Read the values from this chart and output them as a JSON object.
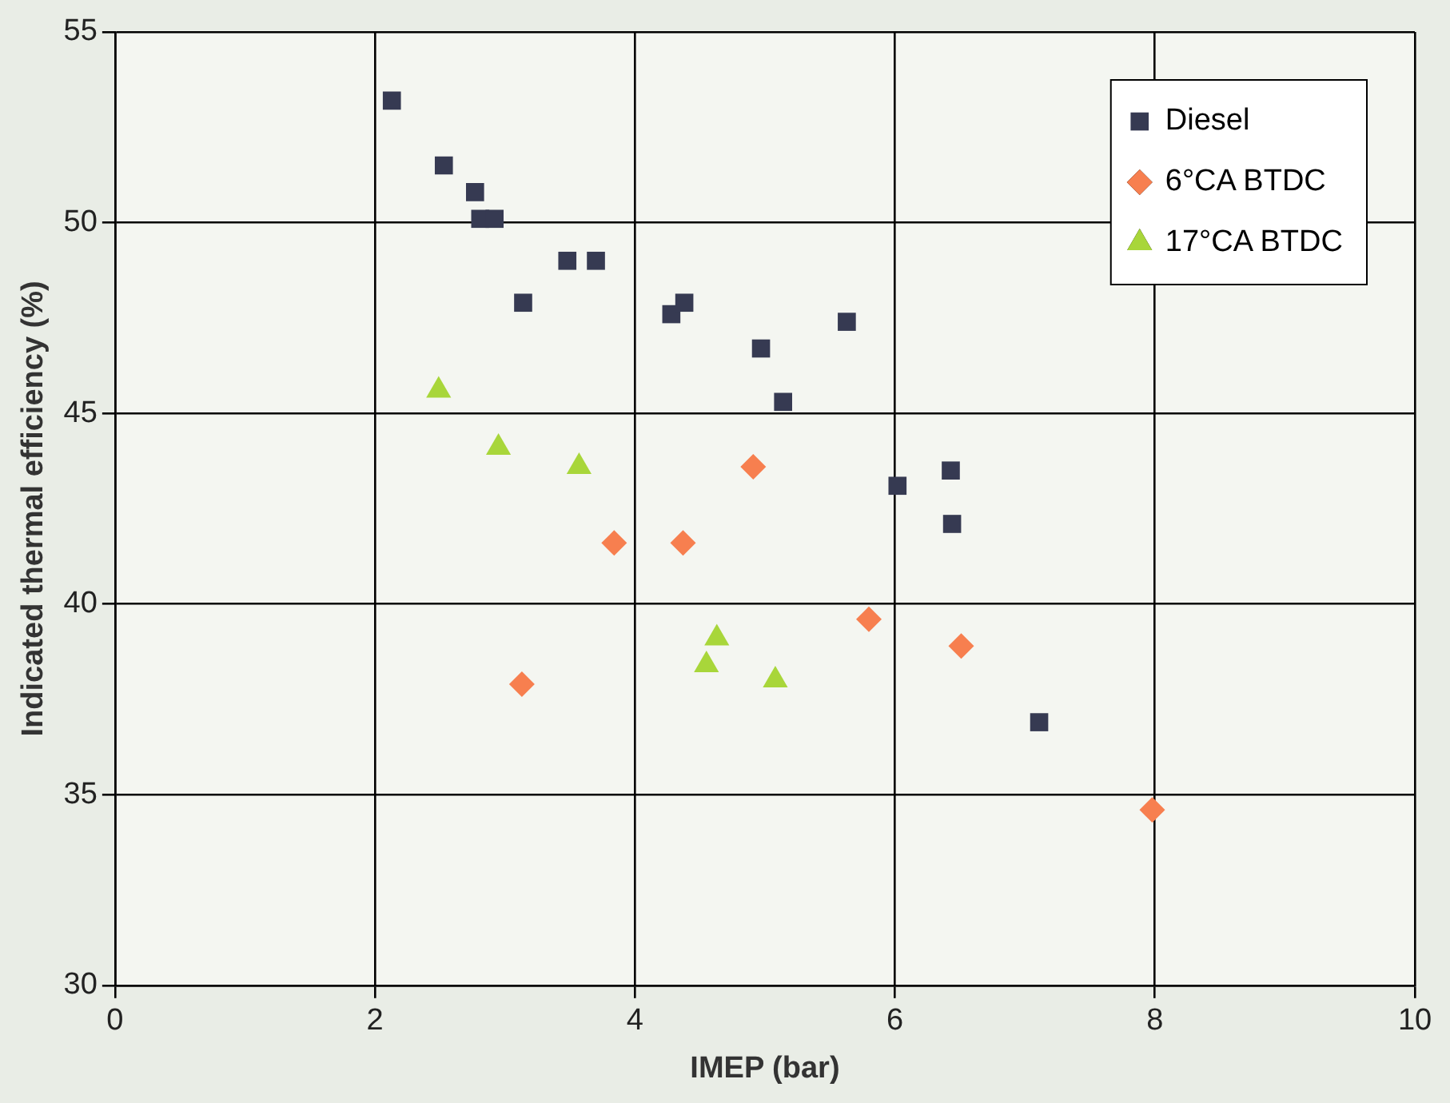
{
  "chart_data": {
    "type": "scatter",
    "xlabel": "IMEP (bar)",
    "ylabel": "Indicated thermal efficiency (%)",
    "xlim": [
      0,
      10
    ],
    "xticks": [
      0,
      2,
      4,
      6,
      8,
      10
    ],
    "ylim": [
      30,
      55
    ],
    "yticks": [
      30,
      35,
      40,
      45,
      50,
      55
    ],
    "grid": true,
    "legend": "top right",
    "series": [
      {
        "name": "Diesel",
        "color": "#363a52",
        "marker": "square",
        "x": [
          2.13,
          2.53,
          2.77,
          2.81,
          2.92,
          3.48,
          3.7,
          3.14,
          4.28,
          4.38,
          4.97,
          5.14,
          5.63,
          6.02,
          6.43,
          6.44,
          7.11
        ],
        "values": [
          53.2,
          51.5,
          50.8,
          50.1,
          50.1,
          49,
          49,
          47.9,
          47.6,
          47.9,
          46.7,
          45.3,
          47.4,
          43.1,
          43.5,
          42.1,
          36.9
        ]
      },
      {
        "name": "6°CA BTDC",
        "color": "#f77f4f",
        "marker": "diamond",
        "x": [
          3.13,
          3.84,
          4.37,
          4.91,
          5.8,
          6.51,
          7.98
        ],
        "values": [
          37.9,
          41.6,
          41.6,
          43.6,
          39.6,
          38.9,
          34.6
        ]
      },
      {
        "name": "17°CA BTDC",
        "color": "#a8d63a",
        "marker": "triangle",
        "x": [
          2.49,
          2.95,
          3.57,
          4.55,
          4.63,
          5.08
        ],
        "values": [
          45.6,
          44.1,
          43.6,
          38.4,
          39.1,
          38
        ]
      }
    ]
  }
}
